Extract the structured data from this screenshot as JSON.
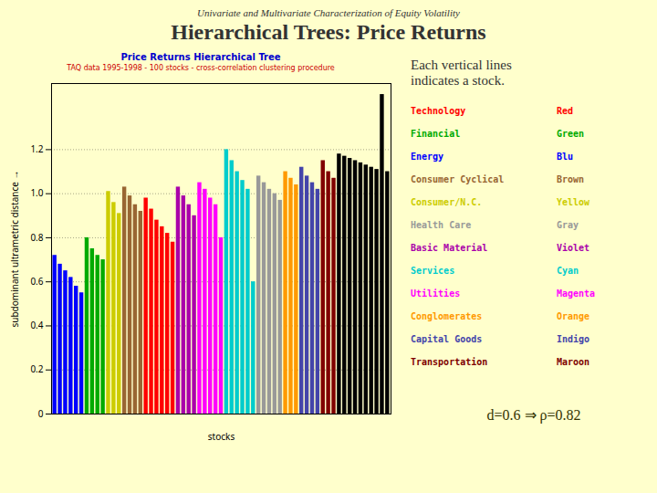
{
  "chart_data": {
    "type": "bar",
    "subtitle": "Univariate and Multivariate Characterization of Equity Volatility",
    "title": "Hierarchical Trees: Price Returns",
    "chart_title": "Price Returns Hierarchical Tree",
    "chart_subtitle": "TAQ data 1995-1998 - 100 stocks - cross-correlation clustering procedure",
    "xlabel": "stocks",
    "ylabel": "subdominant ultrametric distance",
    "legend": "right",
    "legend_title": "Each vertical lines\nindicates a stock.",
    "legend_entries": [
      {
        "label": "Technology",
        "color_name": "Red",
        "color": "#ff0000"
      },
      {
        "label": "Financial",
        "color_name": "Green",
        "color": "#00aa00"
      },
      {
        "label": "Energy",
        "color_name": "Blu",
        "color": "#0000ff"
      },
      {
        "label": "Consumer Cyclical",
        "color_name": "Brown",
        "color": "#996633"
      },
      {
        "label": "Consumer/N.C.",
        "color_name": "Yellow",
        "color": "#cccc00"
      },
      {
        "label": "Health Care",
        "color_name": "Gray",
        "color": "#999999"
      },
      {
        "label": "Basic Material",
        "color_name": "Violet",
        "color": "#aa00aa"
      },
      {
        "label": "Services",
        "color_name": "Cyan",
        "color": "#00cccc"
      },
      {
        "label": "Utilities",
        "color_name": "Magenta",
        "color": "#ff00ff"
      },
      {
        "label": "Conglomerates",
        "color_name": "Orange",
        "color": "#ff9900"
      },
      {
        "label": "Capital Goods",
        "color_name": "Indigo",
        "color": "#4444aa"
      },
      {
        "label": "Transportation",
        "color_name": "Maroon",
        "color": "#800000"
      }
    ],
    "annotation": "d=0.6 ⇒ ρ=0.82",
    "categories": [
      null,
      null,
      null,
      null,
      null,
      null,
      null,
      null,
      null,
      null,
      null,
      null,
      null,
      null,
      null,
      null,
      null,
      null,
      null,
      null,
      null,
      null,
      null,
      null,
      null,
      null,
      null,
      null,
      null,
      null,
      null,
      null,
      null,
      null,
      null,
      null,
      null,
      null,
      null,
      null,
      null,
      null,
      null,
      null,
      null,
      null,
      null,
      null,
      null,
      null,
      null,
      null,
      null,
      null,
      null,
      null,
      null,
      null,
      null,
      null,
      null,
      null,
      null
    ],
    "values": [
      0.72,
      0.68,
      0.65,
      0.62,
      0.58,
      0.55,
      0.8,
      0.75,
      0.72,
      0.7,
      1.01,
      0.96,
      0.91,
      1.03,
      0.99,
      0.95,
      0.92,
      0.98,
      0.93,
      0.88,
      0.85,
      0.82,
      0.78,
      1.03,
      0.99,
      0.95,
      0.9,
      1.05,
      1.02,
      0.98,
      0.95,
      0.8,
      1.2,
      1.15,
      1.1,
      1.06,
      1.02,
      0.6,
      1.08,
      1.05,
      1.02,
      1.0,
      0.97,
      1.1,
      1.07,
      1.04,
      1.12,
      1.08,
      1.05,
      1.02,
      1.15,
      1.1,
      1.07,
      1.18,
      1.17,
      1.16,
      1.15,
      1.14,
      1.13,
      1.12,
      1.11,
      1.45,
      1.1
    ],
    "colors": [
      "#0000ff",
      "#0000ff",
      "#0000ff",
      "#0000ff",
      "#0000ff",
      "#0000ff",
      "#00aa00",
      "#00aa00",
      "#00aa00",
      "#00aa00",
      "#cccc00",
      "#cccc00",
      "#cccc00",
      "#996633",
      "#996633",
      "#996633",
      "#996633",
      "#ff0000",
      "#ff0000",
      "#ff0000",
      "#ff0000",
      "#ff0000",
      "#ff0000",
      "#aa00aa",
      "#aa00aa",
      "#aa00aa",
      "#aa00aa",
      "#ff00ff",
      "#ff00ff",
      "#ff00ff",
      "#ff00ff",
      "#ff00ff",
      "#00cccc",
      "#00cccc",
      "#00cccc",
      "#00cccc",
      "#00cccc",
      "#00cccc",
      "#999999",
      "#999999",
      "#999999",
      "#999999",
      "#999999",
      "#ff9900",
      "#ff9900",
      "#ff9900",
      "#4444aa",
      "#4444aa",
      "#4444aa",
      "#4444aa",
      "#800000",
      "#800000",
      "#800000",
      "#000000",
      "#000000",
      "#000000",
      "#000000",
      "#000000",
      "#000000",
      "#000000",
      "#000000",
      "#000000",
      "#000000"
    ],
    "ylim": [
      0,
      1.5
    ],
    "yticks": [
      0,
      0.2,
      0.4,
      0.6,
      0.8,
      {
        "value": 1,
        "label": "1.0"
      },
      1.2
    ],
    "grid": true,
    "tick_labels": "y"
  }
}
